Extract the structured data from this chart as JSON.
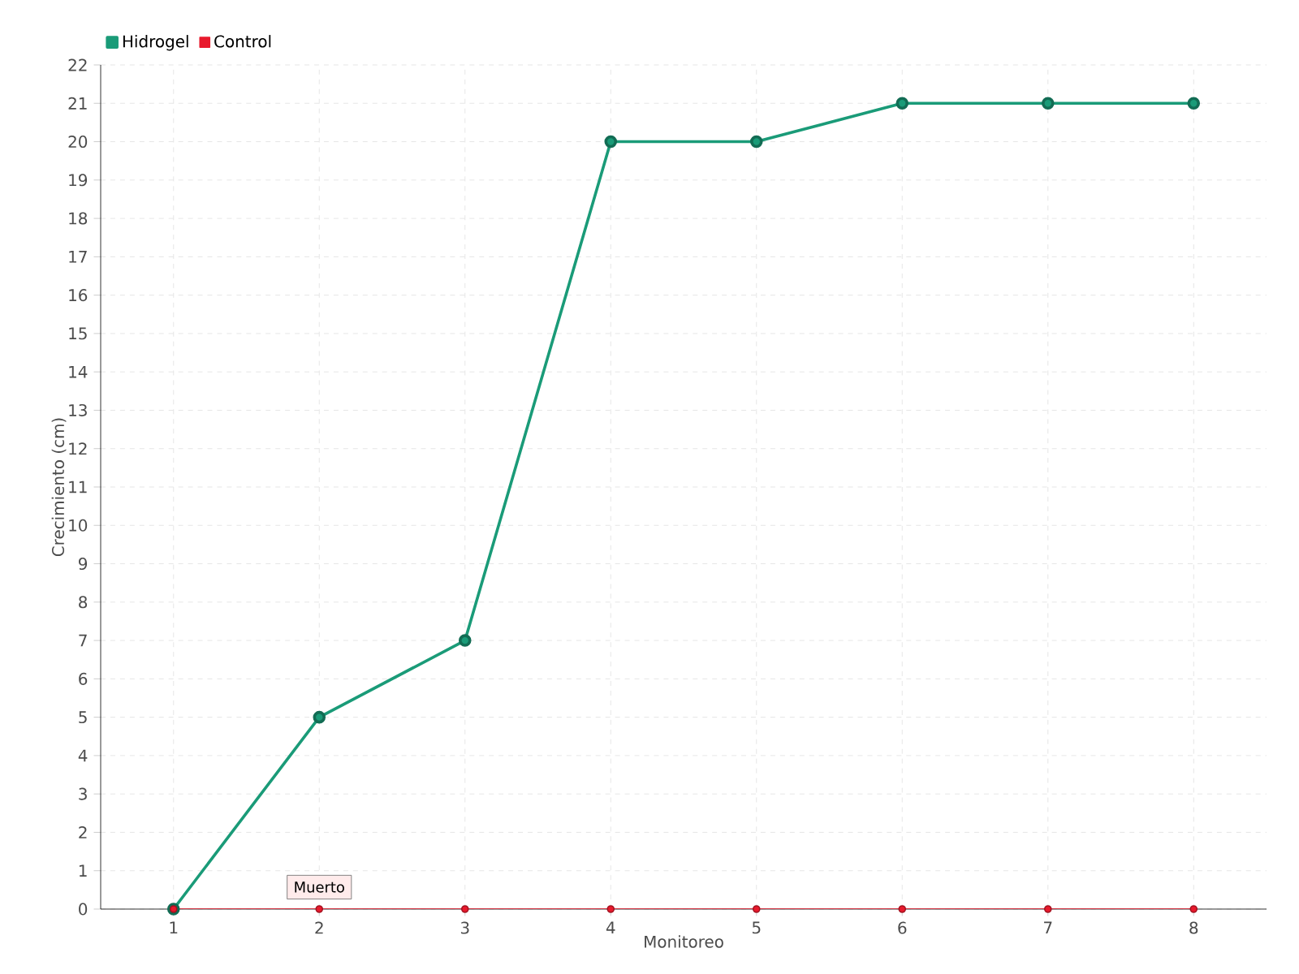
{
  "chart_data": {
    "type": "line",
    "xlabel": "Monitoreo",
    "ylabel": "Crecimiento (cm)",
    "categories": [
      "1",
      "2",
      "3",
      "4",
      "5",
      "6",
      "7",
      "8"
    ],
    "series": [
      {
        "name": "Hidrogel",
        "color": "#1a9b78",
        "values": [
          0,
          5,
          7,
          20,
          20,
          21,
          21,
          21
        ]
      },
      {
        "name": "Control",
        "color": "#e8192c",
        "values": [
          0,
          0,
          0,
          0,
          0,
          0,
          0,
          0
        ]
      }
    ],
    "ylim": [
      0,
      22
    ],
    "yticks": [
      0,
      1,
      2,
      3,
      4,
      5,
      6,
      7,
      8,
      9,
      10,
      11,
      12,
      13,
      14,
      15,
      16,
      17,
      18,
      19,
      20,
      21,
      22
    ],
    "grid": true,
    "legend": "top left",
    "marker": "circle",
    "line_style": "solid",
    "annotations": [
      {
        "text": "Muerto",
        "x": "2",
        "y": 0
      }
    ]
  }
}
